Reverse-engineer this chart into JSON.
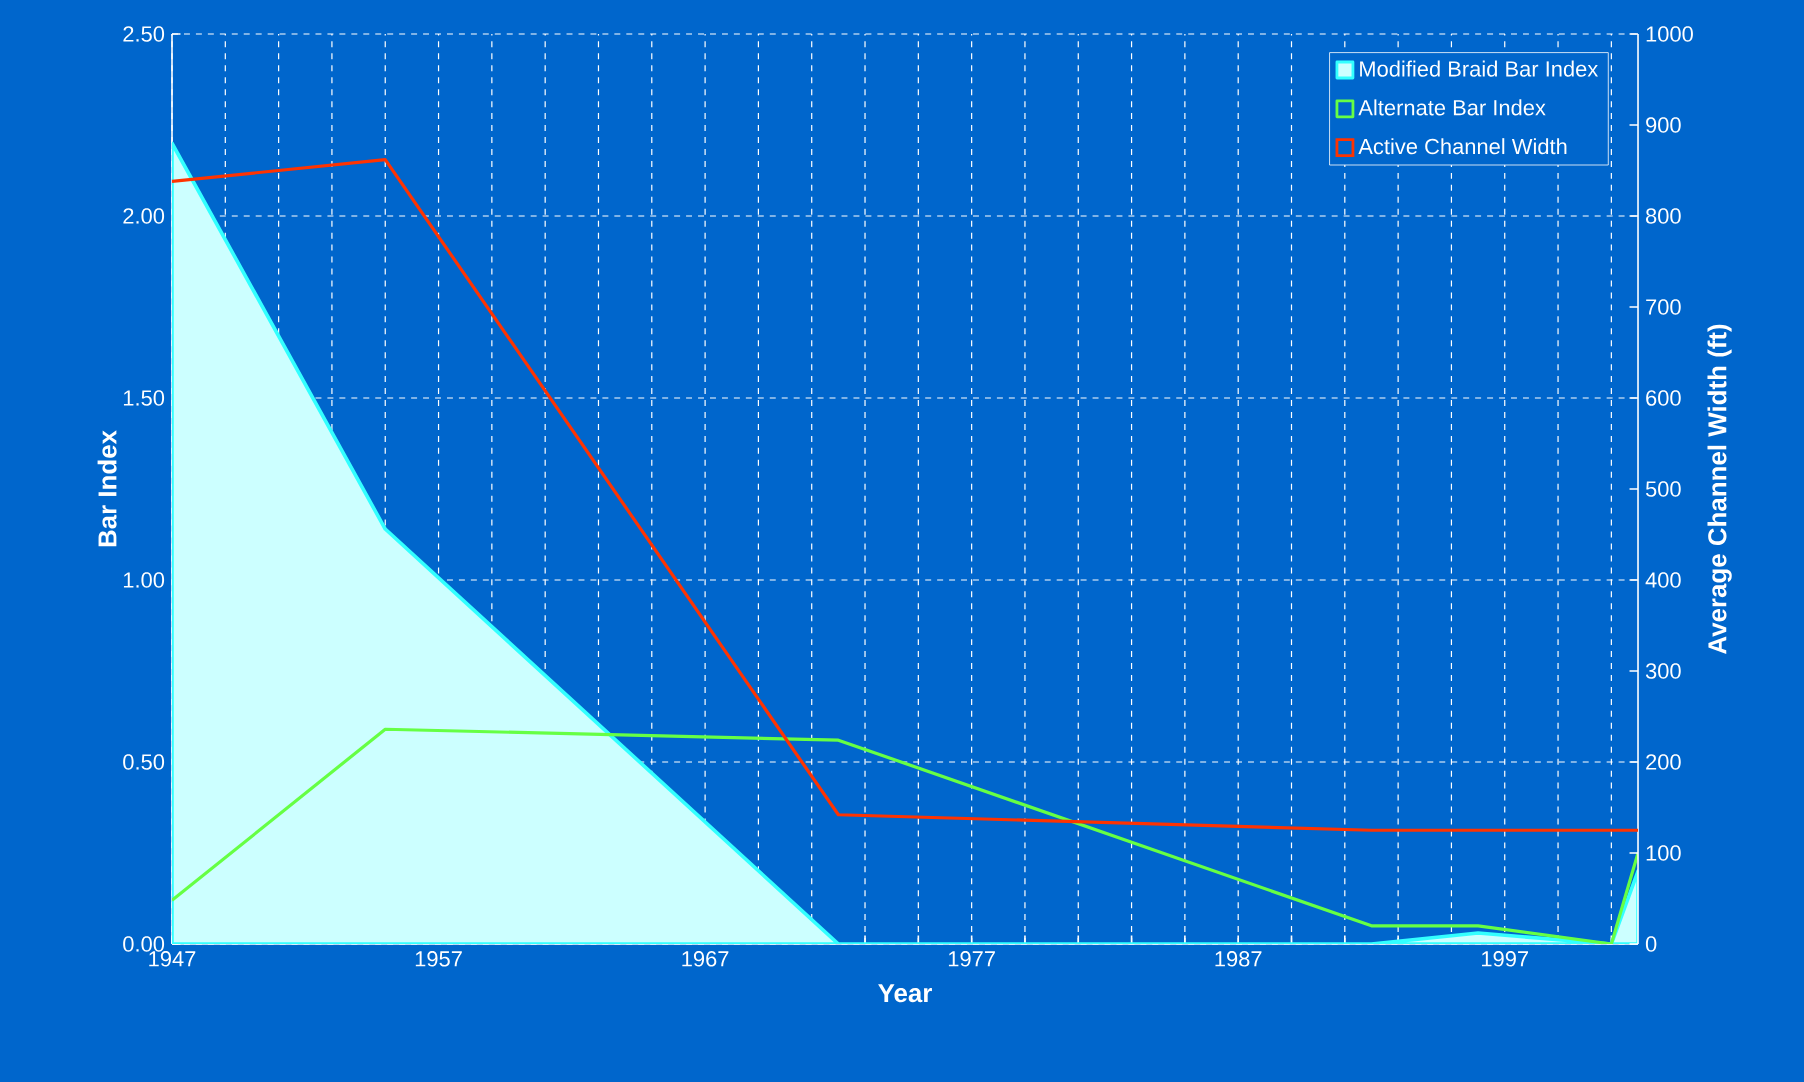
{
  "chart_data": {
    "type": "line",
    "xlabel": "Year",
    "ylabel": "Bar Index",
    "y2label": "Average Channel Width (ft)",
    "xlim": [
      1947,
      2002
    ],
    "ylim": [
      0,
      2.5
    ],
    "y2lim": [
      0,
      1000
    ],
    "xticks": [
      1947,
      {
        "value": 1949,
        "label": null
      },
      {
        "value": 1951,
        "label": null
      },
      {
        "value": 1953,
        "label": null
      },
      {
        "value": 1955,
        "label": null
      },
      1957,
      {
        "value": 1959,
        "label": null
      },
      {
        "value": 1961,
        "label": null
      },
      {
        "value": 1963,
        "label": null
      },
      {
        "value": 1965,
        "label": null
      },
      1967,
      {
        "value": 1969,
        "label": null
      },
      {
        "value": 1971,
        "label": null
      },
      {
        "value": 1973,
        "label": null
      },
      {
        "value": 1975,
        "label": null
      },
      1977,
      {
        "value": 1979,
        "label": null
      },
      {
        "value": 1981,
        "label": null
      },
      {
        "value": 1983,
        "label": null
      },
      {
        "value": 1985,
        "label": null
      },
      1987,
      {
        "value": 1989,
        "label": null
      },
      {
        "value": 1991,
        "label": null
      },
      {
        "value": 1993,
        "label": null
      },
      {
        "value": 1995,
        "label": null
      },
      1997,
      {
        "value": 1999,
        "label": null
      },
      {
        "value": 2001,
        "label": null
      }
    ],
    "yticks": [
      {
        "value": 0,
        "label": "0.00"
      },
      {
        "value": 0.5,
        "label": "0.50"
      },
      {
        "value": 1,
        "label": "1.00"
      },
      {
        "value": 1.5,
        "label": "1.50"
      },
      {
        "value": 2,
        "label": "2.00"
      },
      {
        "value": 2.5,
        "label": "2.50"
      }
    ],
    "y2ticks": [
      0,
      100,
      200,
      300,
      400,
      500,
      600,
      700,
      800,
      900,
      1000
    ],
    "grid": true,
    "legend": "top right",
    "line_style": "solid",
    "marker": "none",
    "series": [
      {
        "name": "Modified Braid Bar Index",
        "type": "area",
        "color": "#ccffff",
        "x": [
          1947,
          1955,
          1972,
          1992,
          1996,
          2001,
          2002
        ],
        "values": [
          2.2,
          1.14,
          0,
          0,
          0.03,
          0,
          0.2
        ]
      },
      {
        "name": "Alternate Bar Index",
        "color": "#66ff44",
        "x": [
          1947,
          1955,
          1972,
          1992,
          1996,
          2001,
          2002
        ],
        "values": [
          0.12,
          0.59,
          0.56,
          0.05,
          0.05,
          0,
          0.25
        ]
      },
      {
        "name": "Active Channel Width",
        "axis": "y2",
        "color": "#ff3300",
        "x": [
          1947,
          1955,
          1972,
          1992,
          1996,
          2002
        ],
        "values": [
          838,
          862,
          142,
          125,
          125,
          125
        ]
      }
    ]
  }
}
